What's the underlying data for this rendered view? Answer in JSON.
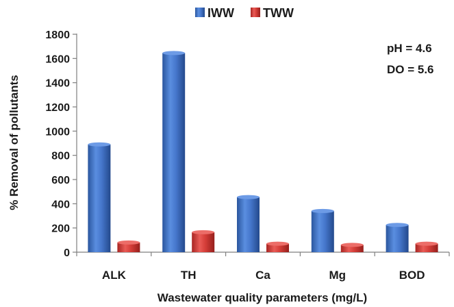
{
  "chart_data": {
    "type": "bar",
    "title": "",
    "xlabel": "Wastewater quality parameters (mg/L)",
    "ylabel": "% Removal of pollutants",
    "categories": [
      "ALK",
      "TH",
      "Ca",
      "Mg",
      "BOD"
    ],
    "series": [
      {
        "name": "IWW",
        "values": [
          890,
          1645,
          455,
          340,
          225
        ],
        "color": "#3b6fc4"
      },
      {
        "name": "TWW",
        "values": [
          80,
          165,
          70,
          60,
          70
        ],
        "color": "#d23a36"
      }
    ],
    "ylim": [
      0,
      1800
    ],
    "yticks": [
      0,
      200,
      400,
      600,
      800,
      1000,
      1200,
      1400,
      1600,
      1800
    ],
    "grid": false,
    "legend_position": "top-center",
    "annotations": [
      "pH = 4.6",
      "DO = 5.6"
    ]
  }
}
